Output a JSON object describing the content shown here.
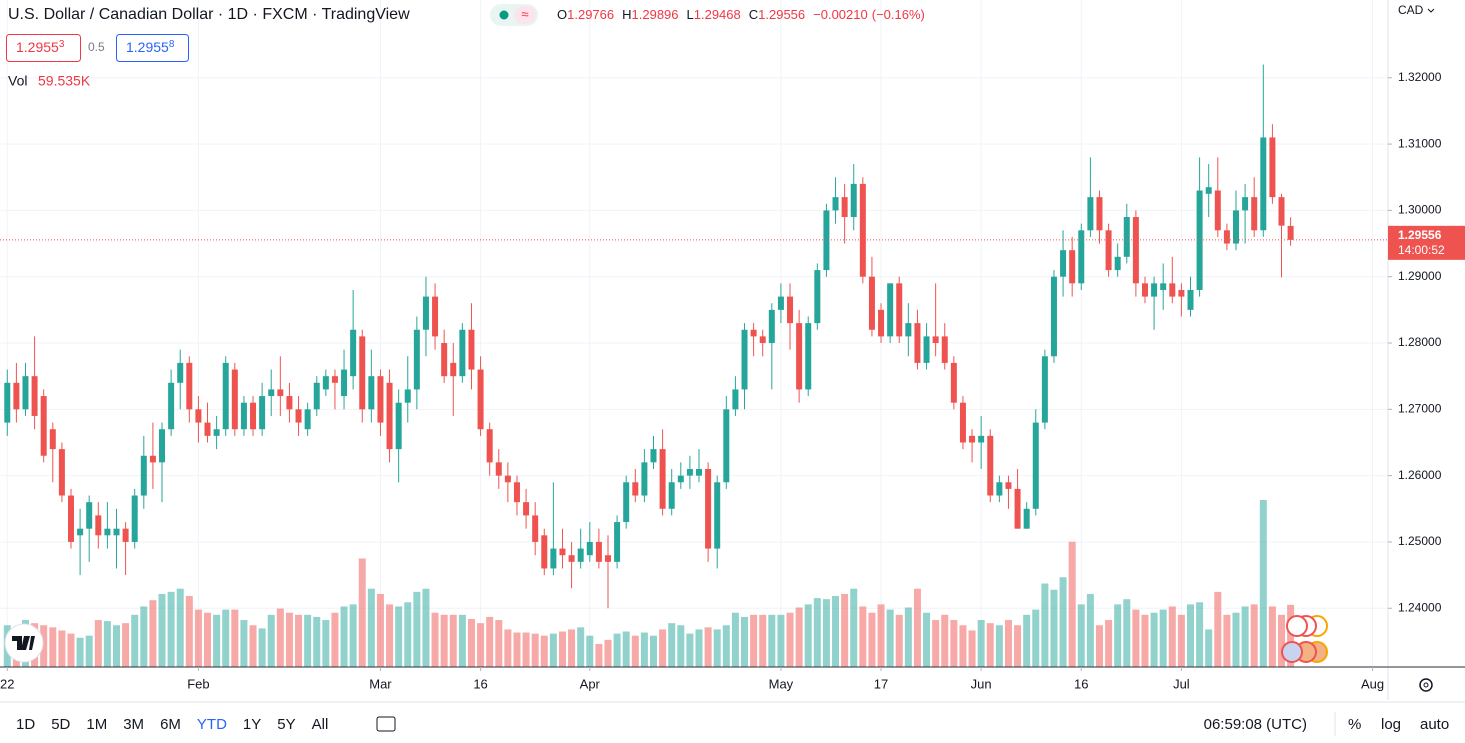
{
  "header": {
    "title": "U.S. Dollar / Canadian Dollar · 1D · FXCM · TradingView",
    "ohlc_letters": [
      "O",
      "H",
      "L",
      "C"
    ],
    "change": {
      "value": -0.0021,
      "label": "−0.00210"
    },
    "change_pct": {
      "value": -0.16,
      "label": "(−0.16%)"
    },
    "bid": "1.2955",
    "bid_sup": "3",
    "spread": "0.5",
    "ask": "1.2955",
    "ask_sup": "8",
    "vol_title": "Vol",
    "currency": "CAD",
    "countdown": "14:00:52"
  },
  "chart_data": {
    "type": "candlestick",
    "up_color": "#26a69a",
    "down_color": "#ef5350",
    "xlim": [
      -0.8,
      151.7
    ],
    "xticks": [
      {
        "value": 0,
        "label": "22"
      },
      {
        "value": 21,
        "label": "Feb"
      },
      {
        "value": 41,
        "label": "Mar"
      },
      {
        "value": 52,
        "label": "16"
      },
      {
        "value": 64,
        "label": "Apr"
      },
      {
        "value": 85,
        "label": "May"
      },
      {
        "value": 96,
        "label": "17"
      },
      {
        "value": 107,
        "label": "Jun"
      },
      {
        "value": 118,
        "label": "16"
      },
      {
        "value": 129,
        "label": "Jul"
      },
      {
        "value": 150,
        "label": "Aug"
      }
    ],
    "ylim": [
      1.23114,
      1.33173
    ],
    "yticks": [
      {
        "value": 1.24,
        "label": "1.24000"
      },
      {
        "value": 1.25,
        "label": "1.25000"
      },
      {
        "value": 1.26,
        "label": "1.26000"
      },
      {
        "value": 1.27,
        "label": "1.27000"
      },
      {
        "value": 1.28,
        "label": "1.28000"
      },
      {
        "value": 1.29,
        "label": "1.29000"
      },
      {
        "value": 1.3,
        "label": "1.30000"
      },
      {
        "value": 1.31,
        "label": "1.31000"
      },
      {
        "value": 1.32,
        "label": "1.32000"
      }
    ],
    "grid": true,
    "candles": [
      [
        1.268,
        1.276,
        1.266,
        1.274
      ],
      [
        1.274,
        1.277,
        1.268,
        1.27
      ],
      [
        1.27,
        1.277,
        1.269,
        1.275
      ],
      [
        1.275,
        1.281,
        1.267,
        1.269
      ],
      [
        1.272,
        1.273,
        1.262,
        1.263
      ],
      [
        1.267,
        1.268,
        1.259,
        1.264
      ],
      [
        1.264,
        1.265,
        1.256,
        1.257
      ],
      [
        1.257,
        1.258,
        1.249,
        1.25
      ],
      [
        1.251,
        1.255,
        1.245,
        1.252
      ],
      [
        1.252,
        1.257,
        1.247,
        1.256
      ],
      [
        1.254,
        1.256,
        1.249,
        1.251
      ],
      [
        1.251,
        1.256,
        1.249,
        1.252
      ],
      [
        1.251,
        1.255,
        1.246,
        1.252
      ],
      [
        1.252,
        1.253,
        1.245,
        1.25
      ],
      [
        1.25,
        1.258,
        1.249,
        1.257
      ],
      [
        1.257,
        1.266,
        1.255,
        1.263
      ],
      [
        1.263,
        1.268,
        1.258,
        1.262
      ],
      [
        1.262,
        1.268,
        1.256,
        1.267
      ],
      [
        1.267,
        1.276,
        1.266,
        1.274
      ],
      [
        1.274,
        1.279,
        1.27,
        1.277
      ],
      [
        1.277,
        1.278,
        1.268,
        1.27
      ],
      [
        1.27,
        1.272,
        1.265,
        1.268
      ],
      [
        1.268,
        1.271,
        1.265,
        1.266
      ],
      [
        1.266,
        1.269,
        1.264,
        1.267
      ],
      [
        1.267,
        1.278,
        1.266,
        1.277
      ],
      [
        1.276,
        1.277,
        1.266,
        1.267
      ],
      [
        1.267,
        1.272,
        1.266,
        1.271
      ],
      [
        1.271,
        1.272,
        1.266,
        1.267
      ],
      [
        1.267,
        1.274,
        1.266,
        1.272
      ],
      [
        1.272,
        1.276,
        1.269,
        1.273
      ],
      [
        1.273,
        1.278,
        1.269,
        1.272
      ],
      [
        1.272,
        1.274,
        1.268,
        1.27
      ],
      [
        1.27,
        1.272,
        1.266,
        1.268
      ],
      [
        1.267,
        1.271,
        1.266,
        1.27
      ],
      [
        1.27,
        1.275,
        1.269,
        1.274
      ],
      [
        1.273,
        1.276,
        1.272,
        1.275
      ],
      [
        1.275,
        1.276,
        1.27,
        1.274
      ],
      [
        1.272,
        1.279,
        1.27,
        1.276
      ],
      [
        1.275,
        1.288,
        1.273,
        1.282
      ],
      [
        1.281,
        1.282,
        1.268,
        1.27
      ],
      [
        1.27,
        1.279,
        1.268,
        1.275
      ],
      [
        1.275,
        1.276,
        1.266,
        1.268
      ],
      [
        1.274,
        1.276,
        1.262,
        1.264
      ],
      [
        1.264,
        1.273,
        1.259,
        1.271
      ],
      [
        1.271,
        1.278,
        1.268,
        1.273
      ],
      [
        1.273,
        1.284,
        1.27,
        1.282
      ],
      [
        1.282,
        1.29,
        1.278,
        1.287
      ],
      [
        1.287,
        1.289,
        1.279,
        1.281
      ],
      [
        1.28,
        1.282,
        1.274,
        1.275
      ],
      [
        1.277,
        1.28,
        1.269,
        1.275
      ],
      [
        1.275,
        1.283,
        1.274,
        1.282
      ],
      [
        1.282,
        1.286,
        1.273,
        1.276
      ],
      [
        1.276,
        1.278,
        1.266,
        1.267
      ],
      [
        1.267,
        1.268,
        1.26,
        1.262
      ],
      [
        1.262,
        1.264,
        1.258,
        1.26
      ],
      [
        1.26,
        1.262,
        1.256,
        1.259
      ],
      [
        1.259,
        1.26,
        1.254,
        1.256
      ],
      [
        1.256,
        1.258,
        1.252,
        1.254
      ],
      [
        1.254,
        1.256,
        1.248,
        1.25
      ],
      [
        1.251,
        1.252,
        1.245,
        1.246
      ],
      [
        1.246,
        1.259,
        1.245,
        1.249
      ],
      [
        1.249,
        1.252,
        1.246,
        1.248
      ],
      [
        1.248,
        1.25,
        1.243,
        1.247
      ],
      [
        1.247,
        1.252,
        1.246,
        1.249
      ],
      [
        1.248,
        1.253,
        1.247,
        1.25
      ],
      [
        1.25,
        1.252,
        1.246,
        1.247
      ],
      [
        1.248,
        1.251,
        1.24,
        1.247
      ],
      [
        1.247,
        1.254,
        1.246,
        1.253
      ],
      [
        1.253,
        1.26,
        1.252,
        1.259
      ],
      [
        1.259,
        1.261,
        1.256,
        1.257
      ],
      [
        1.257,
        1.264,
        1.256,
        1.262
      ],
      [
        1.262,
        1.266,
        1.261,
        1.264
      ],
      [
        1.264,
        1.267,
        1.254,
        1.255
      ],
      [
        1.255,
        1.261,
        1.254,
        1.259
      ],
      [
        1.259,
        1.262,
        1.258,
        1.26
      ],
      [
        1.26,
        1.263,
        1.258,
        1.261
      ],
      [
        1.26,
        1.264,
        1.259,
        1.261
      ],
      [
        1.261,
        1.262,
        1.247,
        1.249
      ],
      [
        1.249,
        1.26,
        1.246,
        1.259
      ],
      [
        1.259,
        1.272,
        1.258,
        1.27
      ],
      [
        1.27,
        1.275,
        1.269,
        1.273
      ],
      [
        1.273,
        1.283,
        1.27,
        1.282
      ],
      [
        1.282,
        1.283,
        1.278,
        1.281
      ],
      [
        1.281,
        1.282,
        1.278,
        1.28
      ],
      [
        1.28,
        1.286,
        1.273,
        1.285
      ],
      [
        1.285,
        1.289,
        1.283,
        1.287
      ],
      [
        1.287,
        1.289,
        1.279,
        1.283
      ],
      [
        1.283,
        1.285,
        1.271,
        1.273
      ],
      [
        1.273,
        1.284,
        1.272,
        1.283
      ],
      [
        1.283,
        1.292,
        1.282,
        1.291
      ],
      [
        1.291,
        1.301,
        1.29,
        1.3
      ],
      [
        1.3,
        1.305,
        1.298,
        1.302
      ],
      [
        1.302,
        1.304,
        1.295,
        1.299
      ],
      [
        1.299,
        1.307,
        1.297,
        1.304
      ],
      [
        1.304,
        1.305,
        1.289,
        1.29
      ],
      [
        1.29,
        1.293,
        1.281,
        1.282
      ],
      [
        1.285,
        1.286,
        1.28,
        1.281
      ],
      [
        1.281,
        1.289,
        1.28,
        1.289
      ],
      [
        1.289,
        1.29,
        1.28,
        1.281
      ],
      [
        1.281,
        1.286,
        1.278,
        1.283
      ],
      [
        1.283,
        1.285,
        1.276,
        1.277
      ],
      [
        1.277,
        1.283,
        1.276,
        1.281
      ],
      [
        1.281,
        1.289,
        1.278,
        1.28
      ],
      [
        1.281,
        1.283,
        1.276,
        1.277
      ],
      [
        1.277,
        1.278,
        1.27,
        1.271
      ],
      [
        1.271,
        1.272,
        1.264,
        1.265
      ],
      [
        1.266,
        1.267,
        1.262,
        1.265
      ],
      [
        1.265,
        1.269,
        1.261,
        1.266
      ],
      [
        1.266,
        1.267,
        1.256,
        1.257
      ],
      [
        1.257,
        1.26,
        1.256,
        1.259
      ],
      [
        1.259,
        1.26,
        1.255,
        1.258
      ],
      [
        1.258,
        1.261,
        1.252,
        1.252
      ],
      [
        1.252,
        1.256,
        1.252,
        1.255
      ],
      [
        1.255,
        1.27,
        1.254,
        1.268
      ],
      [
        1.268,
        1.279,
        1.267,
        1.278
      ],
      [
        1.278,
        1.291,
        1.277,
        1.29
      ],
      [
        1.29,
        1.297,
        1.287,
        1.294
      ],
      [
        1.294,
        1.296,
        1.287,
        1.289
      ],
      [
        1.289,
        1.298,
        1.288,
        1.297
      ],
      [
        1.297,
        1.308,
        1.296,
        1.302
      ],
      [
        1.302,
        1.303,
        1.295,
        1.297
      ],
      [
        1.297,
        1.298,
        1.29,
        1.291
      ],
      [
        1.291,
        1.295,
        1.29,
        1.293
      ],
      [
        1.293,
        1.301,
        1.292,
        1.299
      ],
      [
        1.299,
        1.3,
        1.287,
        1.289
      ],
      [
        1.289,
        1.29,
        1.286,
        1.287
      ],
      [
        1.287,
        1.29,
        1.282,
        1.289
      ],
      [
        1.288,
        1.292,
        1.285,
        1.289
      ],
      [
        1.289,
        1.293,
        1.286,
        1.287
      ],
      [
        1.288,
        1.289,
        1.284,
        1.287
      ],
      [
        1.285,
        1.29,
        1.284,
        1.288
      ],
      [
        1.288,
        1.308,
        1.287,
        1.303
      ],
      [
        1.3025,
        1.307,
        1.299,
        1.3035
      ],
      [
        1.303,
        1.308,
        1.296,
        1.297
      ],
      [
        1.297,
        1.298,
        1.294,
        1.295
      ],
      [
        1.295,
        1.303,
        1.294,
        1.3
      ],
      [
        1.3,
        1.304,
        1.295,
        1.302
      ],
      [
        1.302,
        1.305,
        1.296,
        1.297
      ],
      [
        1.297,
        1.322,
        1.296,
        1.311
      ],
      [
        1.311,
        1.313,
        1.301,
        1.302
      ],
      [
        1.302,
        1.3025,
        1.2899,
        1.2977
      ],
      [
        1.29766,
        1.29896,
        1.29468,
        1.29556
      ]
    ],
    "volume": [
      40,
      38,
      45,
      42,
      40,
      38,
      35,
      32,
      28,
      30,
      45,
      44,
      40,
      42,
      50,
      58,
      64,
      70,
      72,
      75,
      68,
      55,
      52,
      50,
      55,
      55,
      45,
      40,
      37,
      50,
      56,
      52,
      50,
      50,
      48,
      45,
      52,
      58,
      60,
      104,
      75,
      70,
      60,
      58,
      62,
      72,
      75,
      52,
      50,
      50,
      50,
      46,
      42,
      48,
      45,
      36,
      33,
      33,
      32,
      30,
      32,
      34,
      36,
      38,
      30,
      22,
      26,
      32,
      34,
      30,
      33,
      30,
      36,
      42,
      40,
      32,
      36,
      38,
      36,
      40,
      52,
      48,
      50,
      50,
      50,
      50,
      52,
      57,
      60,
      66,
      65,
      68,
      70,
      75,
      58,
      52,
      60,
      55,
      50,
      57,
      75,
      52,
      45,
      50,
      45,
      40,
      35,
      45,
      42,
      40,
      45,
      40,
      50,
      55,
      80,
      74,
      86,
      120,
      60,
      70,
      40,
      45,
      60,
      65,
      55,
      50,
      52,
      55,
      58,
      50,
      60,
      62,
      36,
      72,
      50,
      52,
      58,
      60,
      160,
      58,
      50,
      59.535
    ],
    "volume_label": "59.535K"
  },
  "toolbar": {
    "ranges": [
      "1D",
      "5D",
      "1M",
      "3M",
      "6M",
      "YTD",
      "1Y",
      "5Y",
      "All"
    ],
    "active": "YTD",
    "clock": "06:59:08 (UTC)",
    "percent": "%",
    "log": "log",
    "auto": "auto"
  }
}
